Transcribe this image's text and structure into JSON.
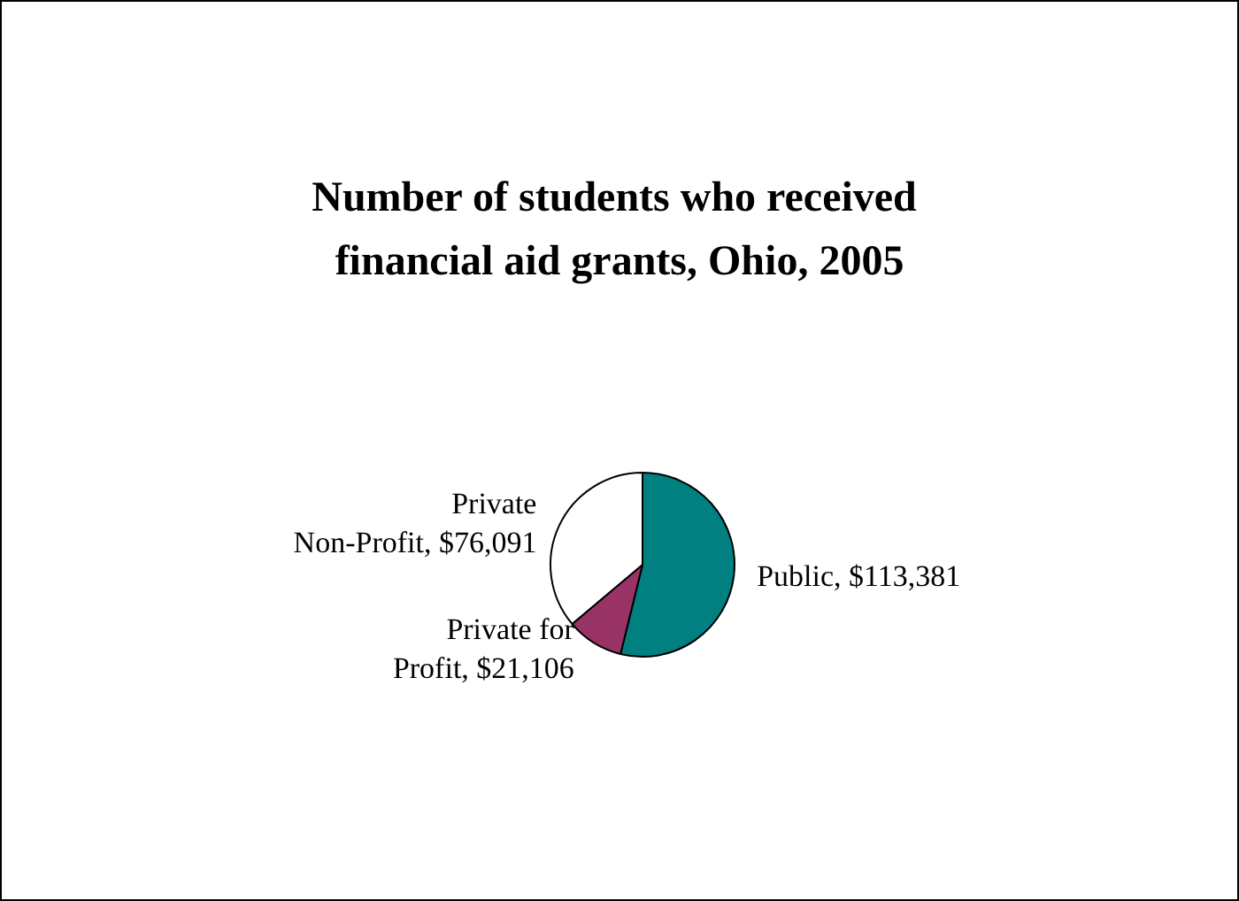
{
  "chart_data": {
    "type": "pie",
    "title": "Number of students who received financial aid grants, Ohio, 2005",
    "categories": [
      "Public",
      "Private for Profit",
      "Private Non-Profit"
    ],
    "values": [
      113381,
      21106,
      76091
    ],
    "value_labels": [
      "$113,381",
      "$21,106",
      "$76,091"
    ],
    "colors": [
      "#008080",
      "#993366",
      "#ffffff"
    ]
  }
}
